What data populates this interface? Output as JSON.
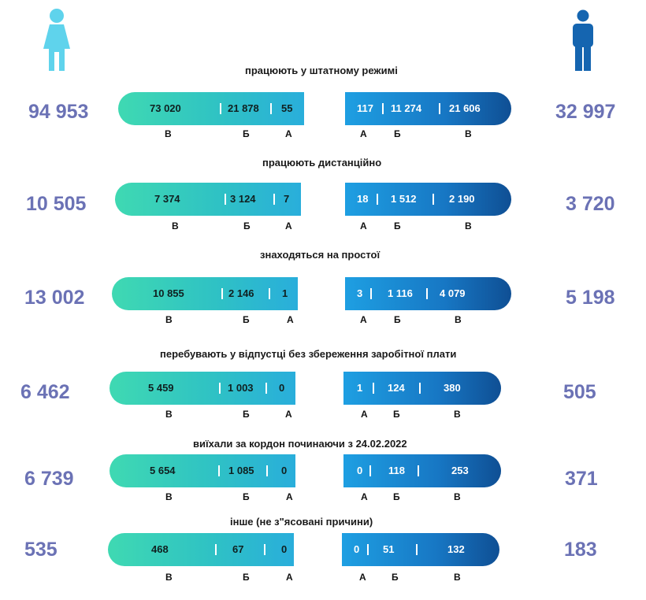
{
  "chart_data": {
    "type": "bar",
    "rows": [
      {
        "title": "працюють у штатному режимі",
        "female_total": "94 953",
        "male_total": "32 997",
        "female": {
          "В": "73 020",
          "Б": "21 878",
          "А": "55"
        },
        "male": {
          "А": "117",
          "Б": "11 274",
          "В": "21 606"
        }
      },
      {
        "title": "працюють дистанційно",
        "female_total": "10 505",
        "male_total": "3 720",
        "female": {
          "В": "7 374",
          "Б": "3 124",
          "А": "7"
        },
        "male": {
          "А": "18",
          "Б": "1 512",
          "В": "2 190"
        }
      },
      {
        "title": "знаходяться на простої",
        "female_total": "13 002",
        "male_total": "5 198",
        "female": {
          "В": "10 855",
          "Б": "2 146",
          "А": "1"
        },
        "male": {
          "А": "3",
          "Б": "1 116",
          "В": "4 079"
        }
      },
      {
        "title": "перебувають у відпустці без збереження заробітної плати",
        "female_total": "6 462",
        "male_total": "505",
        "female": {
          "В": "5 459",
          "Б": "1 003",
          "А": "0"
        },
        "male": {
          "А": "1",
          "Б": "124",
          "В": "380"
        }
      },
      {
        "title": "виїхали за кордон починаючи з 24.02.2022",
        "female_total": "6 739",
        "male_total": "371",
        "female": {
          "В": "5 654",
          "Б": "1 085",
          "А": "0"
        },
        "male": {
          "А": "0",
          "Б": "118",
          "В": "253"
        }
      },
      {
        "title": "інше (не з\"ясовані причини)",
        "female_total": "535",
        "male_total": "183",
        "female": {
          "В": "468",
          "Б": "67",
          "А": "0"
        },
        "male": {
          "А": "0",
          "Б": "51",
          "В": "132"
        }
      }
    ]
  },
  "colors": {
    "female_icon": "#5fd3ec",
    "male_icon": "#1565b0",
    "totals": "#6b72b5"
  },
  "icons": {
    "female": "woman-icon",
    "male": "man-icon"
  }
}
